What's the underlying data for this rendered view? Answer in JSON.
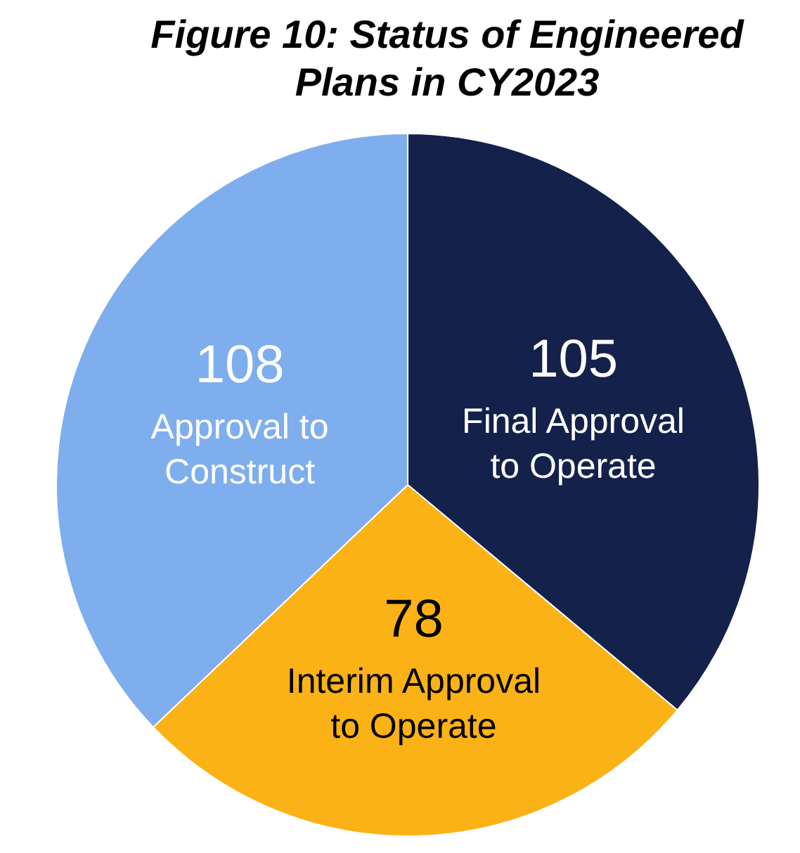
{
  "chart_data": {
    "type": "pie",
    "title": "Figure 10: Status of Engineered Plans in CY2023",
    "categories": [
      "Final Approval to Operate",
      "Interim Approval to Operate",
      "Approval to Construct"
    ],
    "values": [
      105,
      78,
      108
    ],
    "colors": [
      "#13214b",
      "#fbb216",
      "#7eaeed"
    ],
    "data_labels": true
  }
}
